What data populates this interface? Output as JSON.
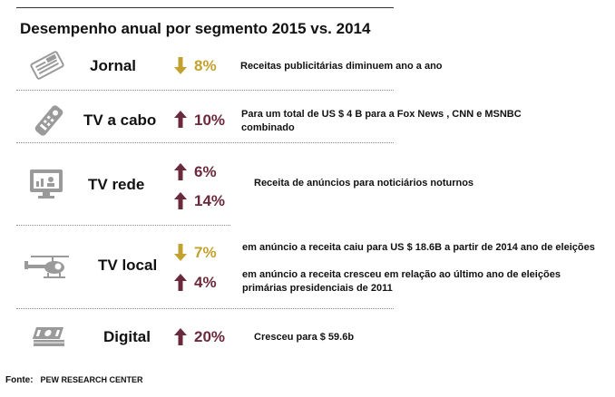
{
  "chart_data": {
    "type": "table",
    "title": "Desempenho anual por segmento 2015 vs. 2014",
    "columns": [
      "segment",
      "direction",
      "change_pct",
      "description"
    ],
    "rows": [
      {
        "segment": "Jornal",
        "changes": [
          {
            "direction": "down",
            "value": "8%",
            "desc": "Receitas publicitárias diminuem ano a ano"
          }
        ]
      },
      {
        "segment": "TV a cabo",
        "changes": [
          {
            "direction": "up",
            "value": "10%",
            "desc": "Para um total de US $ 4 B para a Fox News , CNN e MSNBC combinado"
          }
        ]
      },
      {
        "segment": "TV rede",
        "changes": [
          {
            "direction": "up",
            "value": "6%",
            "desc": "Receita de anúncios para noticiários noturnos"
          },
          {
            "direction": "up",
            "value": "14%",
            "desc": ""
          }
        ]
      },
      {
        "segment": "TV local",
        "changes": [
          {
            "direction": "down",
            "value": "7%",
            "desc": "em anúncio a receita caiu para US $ 18.6B a partir de 2014 ano de eleições"
          },
          {
            "direction": "up",
            "value": "4%",
            "desc": "em anúncio a receita cresceu em relação ao último ano de eleições primárias presidenciais de 2011"
          }
        ]
      },
      {
        "segment": "Digital",
        "changes": [
          {
            "direction": "up",
            "value": "20%",
            "desc": "Cresceu para $ 59.6b"
          }
        ]
      }
    ]
  },
  "source": {
    "label": "Fonte:",
    "name": "PEW RESEARCH CENTER"
  },
  "colors": {
    "up": "#6b2a3c",
    "down": "#c2a12f",
    "icon": "#9a9a9a",
    "separator": "#8a8a8a"
  },
  "icons": [
    "newspaper-icon",
    "remote-control-icon",
    "tv-monitor-icon",
    "helicopter-icon",
    "money-stack-icon"
  ]
}
